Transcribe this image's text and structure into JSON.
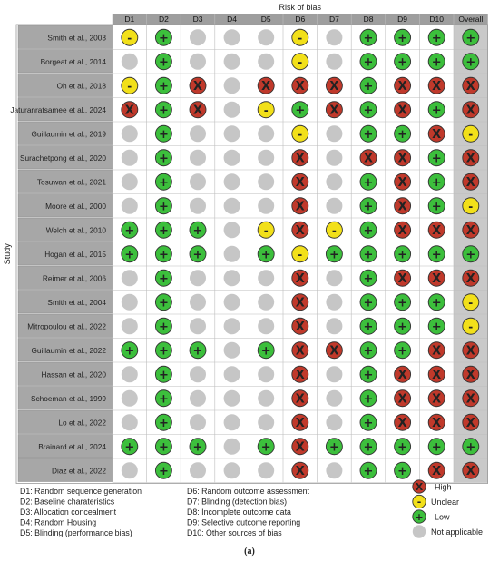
{
  "chart_data": {
    "type": "table",
    "title": "Risk of bias",
    "ylabel": "Study",
    "columns": [
      "D1",
      "D2",
      "D3",
      "D4",
      "D5",
      "D6",
      "D7",
      "D8",
      "D9",
      "D10",
      "Overall"
    ],
    "rows": [
      {
        "study": "Smith et al., 2003",
        "ratings": [
          "U",
          "L",
          "N",
          "N",
          "N",
          "U",
          "N",
          "L",
          "L",
          "L",
          "L"
        ]
      },
      {
        "study": "Borgeat et al., 2014",
        "ratings": [
          "N",
          "L",
          "N",
          "N",
          "N",
          "U",
          "N",
          "L",
          "L",
          "L",
          "L"
        ]
      },
      {
        "study": "Oh et al., 2018",
        "ratings": [
          "U",
          "L",
          "H",
          "N",
          "H",
          "H",
          "H",
          "L",
          "H",
          "H",
          "H"
        ]
      },
      {
        "study": "Jaturanratsamee et al., 2024",
        "ratings": [
          "H",
          "L",
          "H",
          "N",
          "U",
          "L",
          "H",
          "L",
          "H",
          "L",
          "H"
        ]
      },
      {
        "study": "Guillaumin et al., 2019",
        "ratings": [
          "N",
          "L",
          "N",
          "N",
          "N",
          "U",
          "N",
          "L",
          "L",
          "H",
          "U"
        ]
      },
      {
        "study": "Surachetpong et al., 2020",
        "ratings": [
          "N",
          "L",
          "N",
          "N",
          "N",
          "H",
          "N",
          "H",
          "H",
          "L",
          "H"
        ]
      },
      {
        "study": "Tosuwan et al., 2021",
        "ratings": [
          "N",
          "L",
          "N",
          "N",
          "N",
          "H",
          "N",
          "L",
          "H",
          "L",
          "H"
        ]
      },
      {
        "study": "Moore et al., 2000",
        "ratings": [
          "N",
          "L",
          "N",
          "N",
          "N",
          "H",
          "N",
          "L",
          "H",
          "L",
          "U"
        ]
      },
      {
        "study": "Welch et al., 2010",
        "ratings": [
          "L",
          "L",
          "L",
          "N",
          "U",
          "H",
          "U",
          "L",
          "H",
          "H",
          "H"
        ]
      },
      {
        "study": "Hogan et al., 2015",
        "ratings": [
          "L",
          "L",
          "L",
          "N",
          "L",
          "U",
          "L",
          "L",
          "L",
          "L",
          "L"
        ]
      },
      {
        "study": "Reimer et al., 2006",
        "ratings": [
          "N",
          "L",
          "N",
          "N",
          "N",
          "H",
          "N",
          "L",
          "H",
          "H",
          "H"
        ]
      },
      {
        "study": "Smith et al., 2004",
        "ratings": [
          "N",
          "L",
          "N",
          "N",
          "N",
          "H",
          "N",
          "L",
          "L",
          "L",
          "U"
        ]
      },
      {
        "study": "Mitropoulou et al., 2022",
        "ratings": [
          "N",
          "L",
          "N",
          "N",
          "N",
          "H",
          "N",
          "L",
          "L",
          "L",
          "U"
        ]
      },
      {
        "study": "Guillaumin et al., 2022",
        "ratings": [
          "L",
          "L",
          "L",
          "N",
          "L",
          "H",
          "H",
          "L",
          "L",
          "H",
          "H"
        ]
      },
      {
        "study": "Hassan et al., 2020",
        "ratings": [
          "N",
          "L",
          "N",
          "N",
          "N",
          "H",
          "N",
          "L",
          "H",
          "H",
          "H"
        ]
      },
      {
        "study": "Schoeman et al., 1999",
        "ratings": [
          "N",
          "L",
          "N",
          "N",
          "N",
          "H",
          "N",
          "L",
          "H",
          "H",
          "H"
        ]
      },
      {
        "study": "Lo et al., 2022",
        "ratings": [
          "N",
          "L",
          "N",
          "N",
          "N",
          "H",
          "N",
          "L",
          "H",
          "H",
          "H"
        ]
      },
      {
        "study": "Brainard et al., 2024",
        "ratings": [
          "L",
          "L",
          "L",
          "N",
          "L",
          "H",
          "L",
          "L",
          "L",
          "L",
          "L"
        ]
      },
      {
        "study": "Diaz et al., 2022",
        "ratings": [
          "N",
          "L",
          "N",
          "N",
          "N",
          "H",
          "N",
          "L",
          "L",
          "H",
          "H"
        ]
      }
    ],
    "symbols": {
      "H": {
        "glyph": "X",
        "color": "#c0392b"
      },
      "U": {
        "glyph": "-",
        "color": "#f2e01a"
      },
      "L": {
        "glyph": "+",
        "color": "#3cbf3c"
      },
      "N": {
        "glyph": "",
        "color": "#c6c6c6"
      }
    },
    "domain_legend": [
      "D1: Random sequence generation",
      "D2: Baseline charateristics",
      "D3: Allocation concealment",
      "D4: Random Housing",
      "D5: Blinding (performance bias)",
      "D6: Random outcome assessment",
      "D7: Blinding (detection bias)",
      "D8: Incomplete outcome data",
      "D9: Selective outcome reporting",
      "D10: Other sources of bias"
    ],
    "symbol_legend": [
      {
        "key": "H",
        "label": "High"
      },
      {
        "key": "U",
        "label": "Unclear"
      },
      {
        "key": "L",
        "label": "Low"
      },
      {
        "key": "N",
        "label": "Not applicable"
      }
    ]
  },
  "caption": "(a)"
}
